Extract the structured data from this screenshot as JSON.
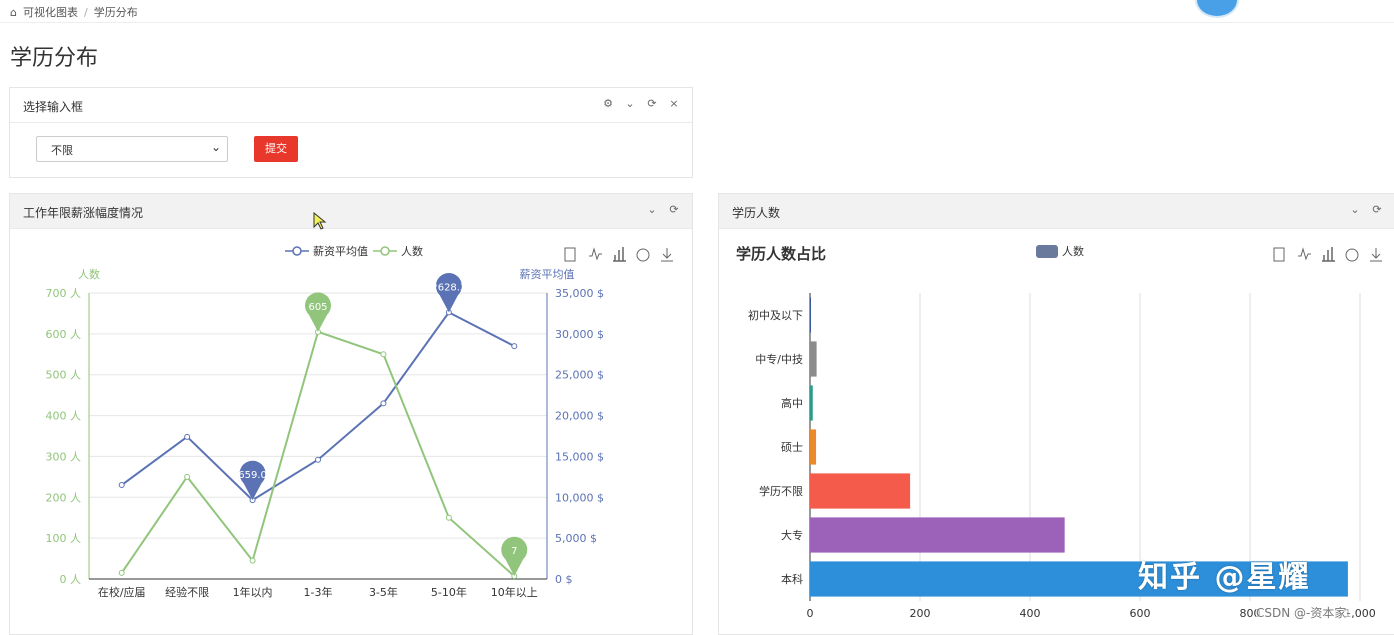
{
  "breadcrumb": {
    "home": "可视化图表",
    "current": "学历分布"
  },
  "page_title": "学历分布",
  "filter_box": {
    "title": "选择输入框",
    "select_value": "不限",
    "submit_label": "提交"
  },
  "left_panel": {
    "title": "工作年限薪涨幅度情况"
  },
  "right_panel": {
    "title": "学历人数"
  },
  "watermark": "知乎 @星耀",
  "csdn_mark": "CSDN @-资本家-",
  "chart_data": [
    {
      "type": "line",
      "categories": [
        "在校/应届",
        "经验不限",
        "1年以内",
        "1-3年",
        "3-5年",
        "5-10年",
        "10年以上"
      ],
      "series": [
        {
          "name": "薪资平均值",
          "axis": "right",
          "color": "#5b73b5",
          "values": [
            11500,
            17400,
            9659.09,
            14600,
            21500,
            32628.38,
            28500
          ]
        },
        {
          "name": "人数",
          "axis": "left",
          "color": "#91c57b",
          "values": [
            15,
            250,
            45,
            605,
            550,
            150,
            7
          ]
        }
      ],
      "markers": [
        {
          "series": "薪资平均值",
          "category": "1年以内",
          "label": "9659.09"
        },
        {
          "series": "薪资平均值",
          "category": "5-10年",
          "label": "32628.38"
        },
        {
          "series": "人数",
          "category": "1-3年",
          "label": "605"
        },
        {
          "series": "人数",
          "category": "10年以上",
          "label": "7"
        }
      ],
      "ylabel_left": "人数",
      "ylabel_right": "薪资平均值",
      "ylim_left": [
        0,
        700
      ],
      "ylim_right": [
        0,
        35000
      ],
      "yticks_left": [
        "0 人",
        "100 人",
        "200 人",
        "300 人",
        "400 人",
        "500 人",
        "600 人",
        "700 人"
      ],
      "yticks_right": [
        "0 $",
        "5,000 $",
        "10,000 $",
        "15,000 $",
        "20,000 $",
        "25,000 $",
        "30,000 $",
        "35,000 $"
      ],
      "legend": "top-center",
      "toolbox": [
        "data-view-icon",
        "line-chart-icon",
        "bar-chart-icon",
        "restore-icon",
        "save-image-icon"
      ]
    },
    {
      "type": "bar",
      "orientation": "horizontal",
      "title": "学历人数占比",
      "categories": [
        "初中及以下",
        "中专/中技",
        "高中",
        "硕士",
        "学历不限",
        "大专",
        "本科"
      ],
      "series": [
        {
          "name": "人数",
          "values": [
            1,
            12,
            5,
            11,
            182,
            463,
            978
          ]
        }
      ],
      "colors": [
        "#3a5a9c",
        "#8c8c8c",
        "#2c9c8a",
        "#ea8a2b",
        "#f45b4a",
        "#9c62ba",
        "#2d8fd9"
      ],
      "legend_color": "#6a7a9c",
      "xlim": [
        0,
        1000
      ],
      "xticks": [
        "0",
        "200",
        "400",
        "600",
        "800",
        "1,000"
      ],
      "grid": true,
      "legend": "top-center",
      "toolbox": [
        "data-view-icon",
        "line-chart-icon",
        "bar-chart-icon",
        "restore-icon",
        "save-image-icon"
      ]
    }
  ]
}
